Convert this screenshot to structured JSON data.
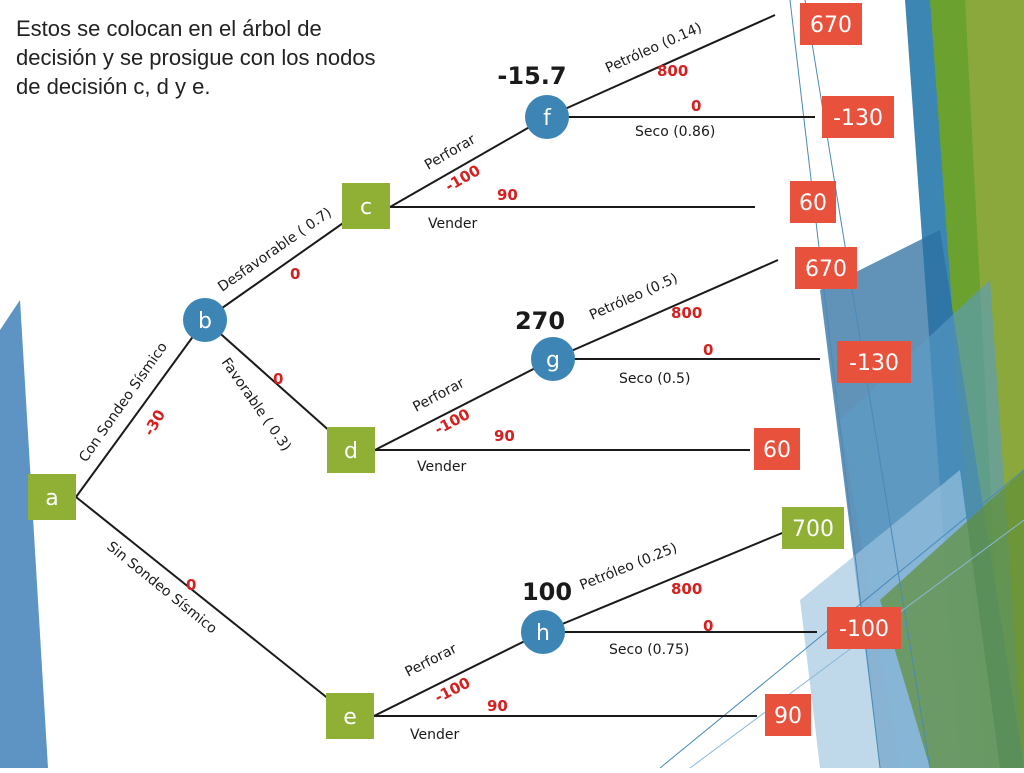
{
  "caption": "Estos se colocan en el árbol de decisión y se prosigue con los nodos de decisión c, d y e.",
  "colors": {
    "chance_node": "#3d85b5",
    "decision_node": "#8fb034",
    "payoff_red": "#e8523d",
    "payoff_green": "#8fb034",
    "value_red": "#d62020",
    "line": "#1a1a1a"
  },
  "nodes": {
    "a": "a",
    "b": "b",
    "c": "c",
    "d": "d",
    "e": "e",
    "f": "f",
    "g": "g",
    "h": "h"
  },
  "node_values": {
    "f": "-15.7",
    "g": "270",
    "h": "100"
  },
  "branches": {
    "a_b": {
      "label": "Con Sondeo Sísmico",
      "value": "-30"
    },
    "a_e": {
      "label": "Sin Sondeo Sísmico",
      "value": "0"
    },
    "b_c": {
      "label": "Desfavorable ( 0.7)",
      "value": "0"
    },
    "b_d": {
      "label": "Favorable ( 0.3)",
      "value": "0"
    },
    "c_f": {
      "label": "Perforar",
      "value": "-100"
    },
    "c_sell": {
      "label": "Vender",
      "value": "90"
    },
    "f_oil": {
      "label": "Petróleo (0.14)",
      "value": "800"
    },
    "f_dry": {
      "label": "Seco (0.86)",
      "value": "0"
    },
    "d_g": {
      "label": "Perforar",
      "value": "-100"
    },
    "d_sell": {
      "label": "Vender",
      "value": "90"
    },
    "g_oil": {
      "label": "Petróleo (0.5)",
      "value": "800"
    },
    "g_dry": {
      "label": "Seco (0.5)",
      "value": "0"
    },
    "e_h": {
      "label": "Perforar",
      "value": "-100"
    },
    "e_sell": {
      "label": "Vender",
      "value": "90"
    },
    "h_oil": {
      "label": "Petróleo (0.25)",
      "value": "800"
    },
    "h_dry": {
      "label": "Seco (0.75)",
      "value": "0"
    }
  },
  "payoffs": {
    "f_oil": "670",
    "f_dry": "-130",
    "c_sell": "60",
    "g_oil": "670",
    "g_dry": "-130",
    "d_sell": "60",
    "h_oil": "700",
    "h_dry": "-100",
    "e_sell": "90"
  }
}
